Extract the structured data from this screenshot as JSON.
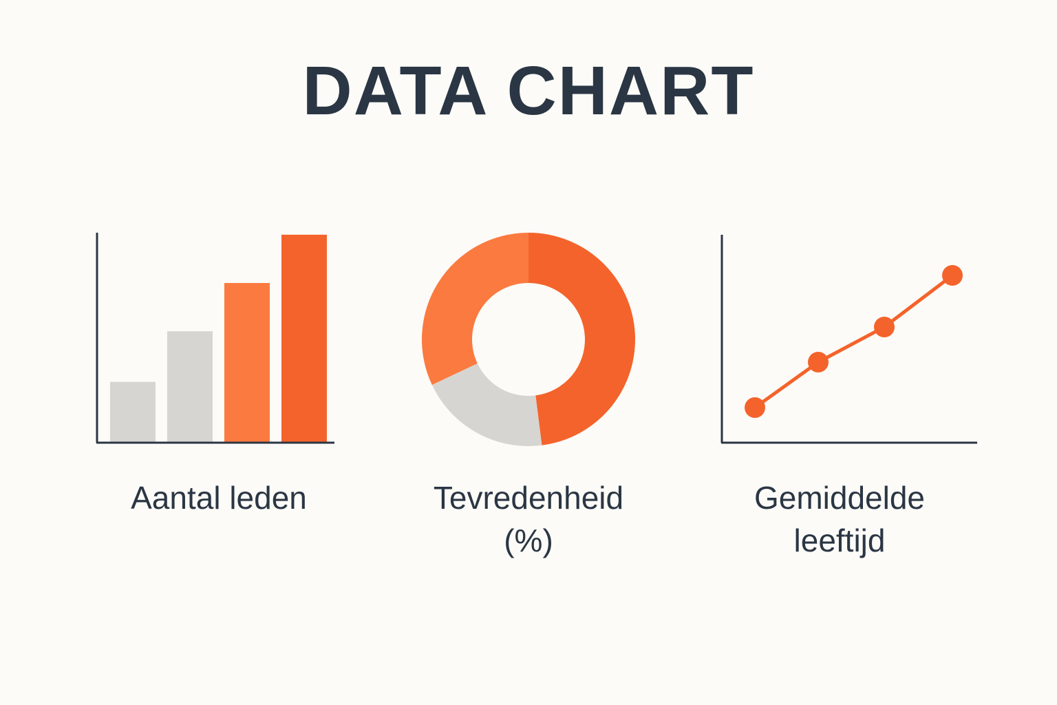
{
  "title": "DATA CHART",
  "colors": {
    "background": "#fcfbf7",
    "text": "#2b3644",
    "axis": "#2b3644",
    "gray": "#d6d5d2",
    "orange_light": "#fb7a3f",
    "orange_dark": "#f4632b"
  },
  "chart_data": [
    {
      "type": "bar",
      "title": "Aantal leden",
      "categories": [
        "",
        "",
        "",
        ""
      ],
      "values": [
        26,
        48,
        69,
        90
      ],
      "ylim": [
        0,
        100
      ],
      "bar_colors": [
        "#d6d5d2",
        "#d6d5d2",
        "#fb7a3f",
        "#f4632b"
      ],
      "grid": false,
      "legend": "none"
    },
    {
      "type": "pie",
      "title_lines": [
        "Tevredenheid",
        "(%)"
      ],
      "donut": true,
      "slices": [
        {
          "value": 48,
          "color": "#f4632b"
        },
        {
          "value": 20,
          "color": "#d6d5d2"
        },
        {
          "value": 32,
          "color": "#fb7a3f"
        }
      ],
      "legend": "none"
    },
    {
      "type": "line",
      "title_lines": [
        "Gemiddelde",
        "leeftijd"
      ],
      "x": [
        1,
        2,
        3,
        4
      ],
      "y": [
        17,
        39,
        56,
        81
      ],
      "ylim": [
        0,
        100
      ],
      "line_color": "#f4632b",
      "grid": false,
      "legend": "none"
    }
  ]
}
